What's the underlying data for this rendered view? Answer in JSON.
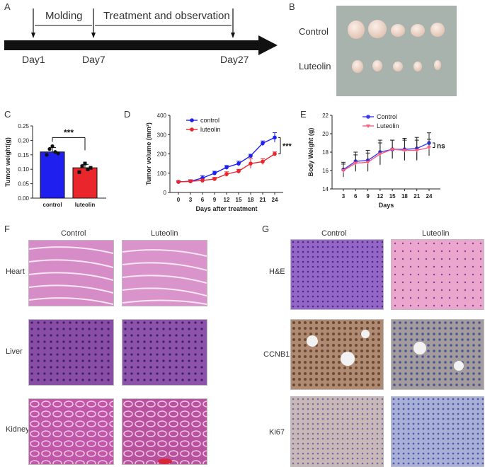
{
  "panels": {
    "A": "A",
    "B": "B",
    "C": "C",
    "D": "D",
    "E": "E",
    "F": "F",
    "G": "G"
  },
  "timeline": {
    "phase1": "Molding",
    "phase2": "Treatment and observation",
    "day1": "Day1",
    "day7": "Day7",
    "day27": "Day27"
  },
  "tumor_photo": {
    "row1": "Control",
    "row2": "Luteolin"
  },
  "histology_f": {
    "col1": "Control",
    "col2": "Luteolin",
    "rows": [
      "Heart",
      "Liver",
      "Kidney"
    ]
  },
  "histology_g": {
    "col1": "Control",
    "col2": "Luteolin",
    "rows": [
      "H&E",
      "CCNB1",
      "Ki67"
    ]
  },
  "colors": {
    "control": "#1f1ff0",
    "luteolin": "#e8262b",
    "control_e": "#3b3bef",
    "luteolin_e": "#ff5a7a",
    "heart": "#d98fc9",
    "liver": "#8c4fa8",
    "kidney": "#c25aa8",
    "he_ctrl": "#8f63c4",
    "he_lut": "#e8a0c8",
    "ihc_ctrl": "#a07d6a",
    "ihc_lut": "#8f96c8",
    "ki_ctrl": "#c7b7b8",
    "ki_lut": "#9aa2d0"
  },
  "chart_data": [
    {
      "id": "C",
      "type": "bar",
      "title": "",
      "categories": [
        "control",
        "luteolin"
      ],
      "values": [
        0.16,
        0.105
      ],
      "errors": [
        0.015,
        0.012
      ],
      "points": [
        [
          0.15,
          0.17,
          0.18,
          0.16,
          0.155
        ],
        [
          0.09,
          0.11,
          0.12,
          0.1,
          0.105
        ]
      ],
      "ylabel": "Tumor weight(g)",
      "xlabel": "",
      "ylim": [
        0,
        0.25
      ],
      "yticks": [
        "0.00",
        "0.05",
        "0.10",
        "0.15",
        "0.20",
        "0.25"
      ],
      "significance": "***"
    },
    {
      "id": "D",
      "type": "line",
      "title": "",
      "x": [
        0,
        3,
        6,
        9,
        12,
        15,
        18,
        21,
        24
      ],
      "series": [
        {
          "name": "control",
          "values": [
            55,
            58,
            75,
            100,
            130,
            150,
            190,
            255,
            285
          ],
          "errors": [
            5,
            8,
            12,
            10,
            10,
            12,
            8,
            12,
            25
          ]
        },
        {
          "name": "luteolin",
          "values": [
            55,
            58,
            62,
            70,
            95,
            110,
            150,
            160,
            200
          ],
          "errors": [
            5,
            6,
            8,
            8,
            12,
            10,
            25,
            15,
            10
          ]
        }
      ],
      "xlabel": "Days after treatment",
      "ylabel": "Tumor volume (mm³)",
      "ylim": [
        0,
        400
      ],
      "yticks": [
        "0",
        "100",
        "200",
        "300",
        "400"
      ],
      "xticks": [
        "0",
        "3",
        "6",
        "9",
        "12",
        "15",
        "18",
        "21",
        "24"
      ],
      "significance": "***"
    },
    {
      "id": "E",
      "type": "line",
      "title": "",
      "x": [
        3,
        6,
        9,
        12,
        15,
        18,
        21,
        24
      ],
      "series": [
        {
          "name": "Control",
          "values": [
            16.1,
            17.0,
            17.1,
            18.0,
            18.3,
            18.3,
            18.4,
            19.0
          ],
          "errors": [
            0.8,
            1.0,
            1.1,
            1.3,
            1.0,
            1.2,
            1.2,
            1.1
          ]
        },
        {
          "name": "Luteolin",
          "values": [
            16.0,
            16.8,
            16.9,
            17.8,
            18.3,
            18.2,
            18.2,
            18.5
          ],
          "errors": [
            0.7,
            0.9,
            1.0,
            1.2,
            1.0,
            1.1,
            1.1,
            0.9
          ]
        }
      ],
      "xlabel": "Days",
      "ylabel": "Body Weight (g)",
      "ylim": [
        14,
        22
      ],
      "yticks": [
        "14",
        "16",
        "18",
        "20",
        "22"
      ],
      "xticks": [
        "3",
        "6",
        "9",
        "12",
        "15",
        "18",
        "21",
        "24"
      ],
      "significance": "ns"
    }
  ]
}
